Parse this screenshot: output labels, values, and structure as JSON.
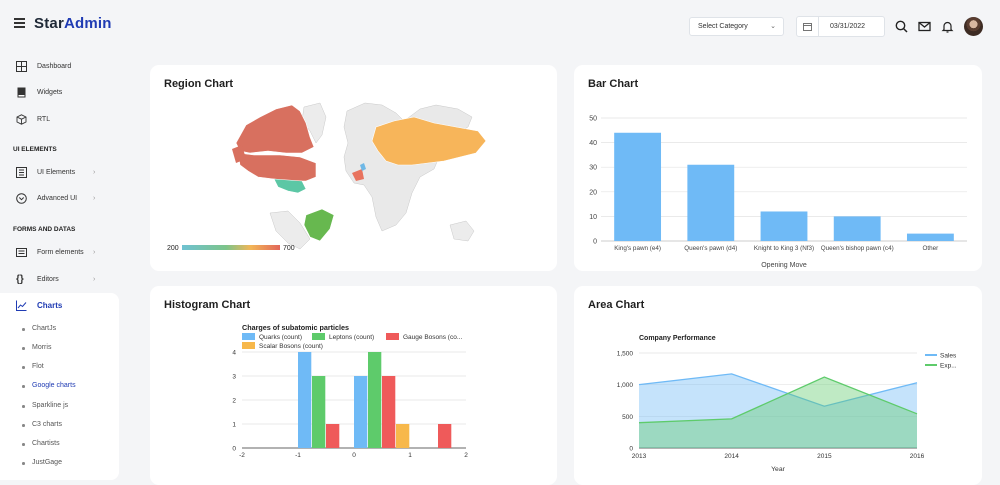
{
  "brand": {
    "part1": "Star",
    "part2": "Admin"
  },
  "header": {
    "category_select": "Select Category",
    "date": "03/31/2022"
  },
  "sidebar": {
    "items_top": [
      {
        "label": "Dashboard",
        "icon": "grid-icon"
      },
      {
        "label": "Widgets",
        "icon": "book-icon"
      },
      {
        "label": "RTL",
        "icon": "cube-icon"
      }
    ],
    "section_ui": "UI ELEMENTS",
    "items_ui": [
      {
        "label": "UI Elements",
        "icon": "layers-icon"
      },
      {
        "label": "Advanced UI",
        "icon": "chevron-circle-icon"
      }
    ],
    "section_forms": "FORMS AND DATAS",
    "items_forms": [
      {
        "label": "Form elements",
        "icon": "card-icon"
      },
      {
        "label": "Editors",
        "icon": "braces-icon"
      }
    ],
    "charts_label": "Charts",
    "chart_links": [
      "ChartJs",
      "Morris",
      "Flot",
      "Google charts",
      "Sparkline js",
      "C3 charts",
      "Chartists",
      "JustGage"
    ]
  },
  "region": {
    "title": "Region Chart",
    "legend_min": "200",
    "legend_max": "700"
  },
  "chart_data": [
    {
      "type": "bar",
      "title": "Bar Chart",
      "categories": [
        "King's pawn (e4)",
        "Queen's pawn (d4)",
        "Knight to King 3 (Nf3)",
        "Queen's bishop pawn (c4)",
        "Other"
      ],
      "values": [
        44,
        31,
        12,
        10,
        3
      ],
      "xlabel": "Opening Move",
      "ylabel": "",
      "ylim": [
        0,
        50
      ],
      "yticks": [
        "0",
        "10",
        "20",
        "30",
        "40",
        "50"
      ],
      "color": "#6fbaf6"
    },
    {
      "type": "bar",
      "title": "Histogram Chart",
      "subtitle": "Charges of subatomic particles",
      "series": [
        {
          "name": "Quarks (count)",
          "color": "#6fbaf6",
          "values": [
            4,
            3
          ]
        },
        {
          "name": "Leptons (count)",
          "color": "#5ecb6b",
          "values": [
            3,
            4
          ]
        },
        {
          "name": "Gauge Bosons (co...",
          "color": "#ef5a5a",
          "values": [
            1,
            3,
            1
          ]
        },
        {
          "name": "Scalar Bosons (count)",
          "color": "#f7b84b",
          "values": [
            1
          ]
        }
      ],
      "xticks": [
        "-2",
        "-1",
        "0",
        "1",
        "2"
      ],
      "yticks": [
        "0",
        "1",
        "2",
        "3",
        "4"
      ],
      "ylim": [
        0,
        4
      ]
    },
    {
      "type": "area",
      "title": "Area Chart",
      "subtitle": "Company Performance",
      "x": [
        "2013",
        "2014",
        "2015",
        "2016"
      ],
      "series": [
        {
          "name": "Sales",
          "color": "#6fbaf6",
          "values": [
            1000,
            1170,
            660,
            1030
          ]
        },
        {
          "name": "Exp...",
          "color": "#5ecb6b",
          "values": [
            400,
            460,
            1120,
            540
          ]
        }
      ],
      "yticks": [
        "0",
        "500",
        "1,000",
        "1,500"
      ],
      "ylim": [
        0,
        1500
      ],
      "xlabel": "Year"
    }
  ]
}
